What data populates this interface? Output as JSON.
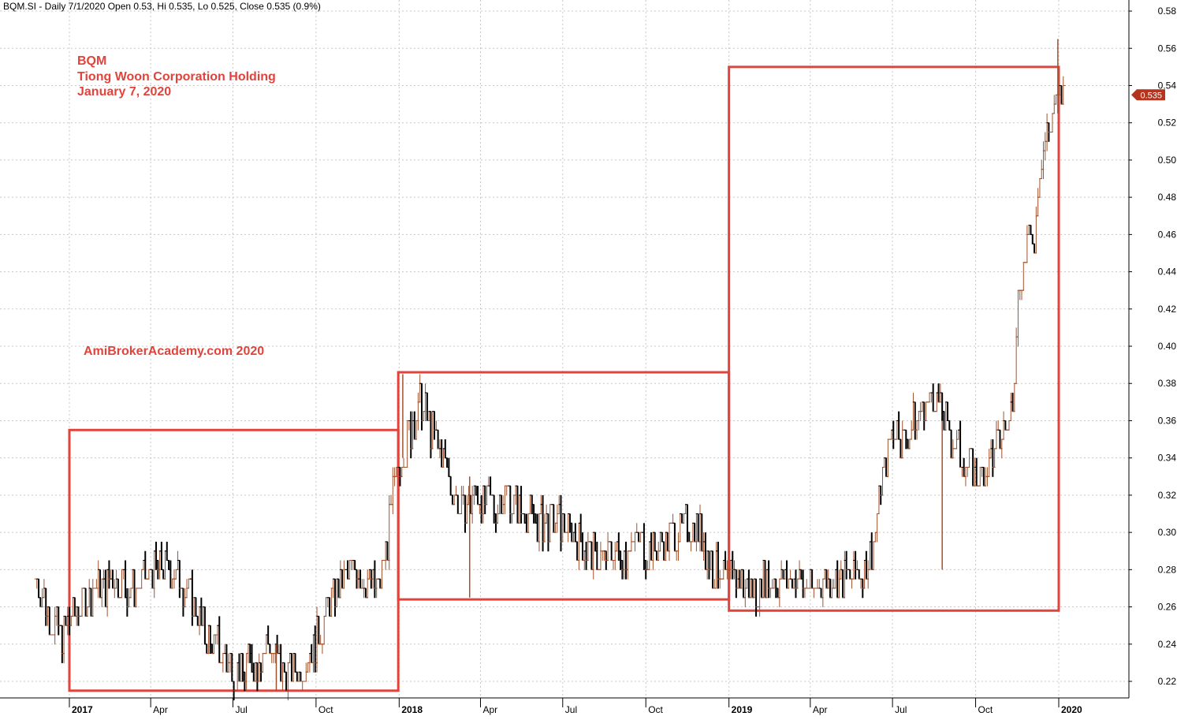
{
  "header": {
    "text": "BQM.SI - Daily 7/1/2020 Open 0.53, Hi 0.535, Lo 0.525, Close 0.535 (0.9%)"
  },
  "annotation": {
    "symbol": "BQM",
    "company": "Tiong Woon Corporation Holding",
    "date": "January 7, 2020",
    "watermark": "AmiBrokerAcademy.com  2020"
  },
  "colors": {
    "box": "#e0443c",
    "up_bar": "#a0522d",
    "down_bar": "#000000",
    "grid": "#c8c8c8",
    "price_tag": "#b5341e"
  },
  "chart_data": {
    "type": "ohlc",
    "title": "",
    "xlabel": "",
    "ylabel": "",
    "ylim": [
      0.21,
      0.585
    ],
    "y_ticks": [
      "0.22",
      "0.24",
      "0.26",
      "0.28",
      "0.30",
      "0.32",
      "0.34",
      "0.36",
      "0.38",
      "0.40",
      "0.42",
      "0.44",
      "0.46",
      "0.48",
      "0.50",
      "0.52",
      "0.54",
      "0.56",
      "0.58"
    ],
    "x_ticks": [
      {
        "label": "2017",
        "date": "2017-01-01",
        "bold": true
      },
      {
        "label": "Apr",
        "date": "2017-04-01",
        "bold": false
      },
      {
        "label": "Jul",
        "date": "2017-07-01",
        "bold": false
      },
      {
        "label": "Oct",
        "date": "2017-10-01",
        "bold": false
      },
      {
        "label": "2018",
        "date": "2018-01-01",
        "bold": true
      },
      {
        "label": "Apr",
        "date": "2018-04-01",
        "bold": false
      },
      {
        "label": "Jul",
        "date": "2018-07-01",
        "bold": false
      },
      {
        "label": "Oct",
        "date": "2018-10-01",
        "bold": false
      },
      {
        "label": "2019",
        "date": "2019-01-01",
        "bold": true
      },
      {
        "label": "Apr",
        "date": "2019-04-01",
        "bold": false
      },
      {
        "label": "Jul",
        "date": "2019-07-01",
        "bold": false
      },
      {
        "label": "Oct",
        "date": "2019-10-01",
        "bold": false
      },
      {
        "label": "2020",
        "date": "2020-01-01",
        "bold": true
      }
    ],
    "last_price_label": "0.535",
    "last_price": 0.535,
    "boxes": [
      {
        "start": "2017-01-01",
        "end": "2017-12-31",
        "low": 0.215,
        "high": 0.355
      },
      {
        "start": "2017-12-31",
        "end": "2019-01-01",
        "low": 0.264,
        "high": 0.386
      },
      {
        "start": "2019-01-01",
        "end": "2020-01-01",
        "low": 0.258,
        "high": 0.55
      }
    ],
    "series": [
      {
        "type": "close_path",
        "points": [
          [
            "2016-11-26",
            0.275
          ],
          [
            "2016-12-10",
            0.255
          ],
          [
            "2016-12-24",
            0.245
          ],
          [
            "2017-01-10",
            0.26
          ],
          [
            "2017-02-01",
            0.27
          ],
          [
            "2017-02-20",
            0.275
          ],
          [
            "2017-03-15",
            0.27
          ],
          [
            "2017-04-05",
            0.28
          ],
          [
            "2017-04-25",
            0.28
          ],
          [
            "2017-05-15",
            0.265
          ],
          [
            "2017-06-01",
            0.245
          ],
          [
            "2017-06-20",
            0.235
          ],
          [
            "2017-07-05",
            0.225
          ],
          [
            "2017-07-25",
            0.23
          ],
          [
            "2017-08-10",
            0.24
          ],
          [
            "2017-08-25",
            0.225
          ],
          [
            "2017-09-10",
            0.225
          ],
          [
            "2017-09-25",
            0.235
          ],
          [
            "2017-10-10",
            0.255
          ],
          [
            "2017-10-25",
            0.27
          ],
          [
            "2017-11-10",
            0.28
          ],
          [
            "2017-11-25",
            0.275
          ],
          [
            "2017-12-10",
            0.27
          ],
          [
            "2017-12-20",
            0.3
          ],
          [
            "2017-12-28",
            0.33
          ],
          [
            "2018-01-10",
            0.35
          ],
          [
            "2018-01-25",
            0.37
          ],
          [
            "2018-02-10",
            0.35
          ],
          [
            "2018-02-25",
            0.33
          ],
          [
            "2018-03-10",
            0.31
          ],
          [
            "2018-03-25",
            0.32
          ],
          [
            "2018-04-10",
            0.315
          ],
          [
            "2018-05-01",
            0.32
          ],
          [
            "2018-05-20",
            0.31
          ],
          [
            "2018-06-10",
            0.305
          ],
          [
            "2018-07-01",
            0.305
          ],
          [
            "2018-07-20",
            0.295
          ],
          [
            "2018-08-10",
            0.285
          ],
          [
            "2018-08-30",
            0.29
          ],
          [
            "2018-09-20",
            0.295
          ],
          [
            "2018-10-10",
            0.29
          ],
          [
            "2018-11-01",
            0.3
          ],
          [
            "2018-11-25",
            0.305
          ],
          [
            "2018-12-15",
            0.28
          ],
          [
            "2019-01-05",
            0.275
          ],
          [
            "2019-01-25",
            0.27
          ],
          [
            "2019-02-15",
            0.275
          ],
          [
            "2019-03-10",
            0.275
          ],
          [
            "2019-04-01",
            0.27
          ],
          [
            "2019-04-20",
            0.275
          ],
          [
            "2019-05-10",
            0.275
          ],
          [
            "2019-05-30",
            0.28
          ],
          [
            "2019-06-10",
            0.295
          ],
          [
            "2019-06-20",
            0.33
          ],
          [
            "2019-07-01",
            0.355
          ],
          [
            "2019-07-15",
            0.35
          ],
          [
            "2019-08-01",
            0.365
          ],
          [
            "2019-08-15",
            0.375
          ],
          [
            "2019-09-01",
            0.355
          ],
          [
            "2019-09-15",
            0.34
          ],
          [
            "2019-10-01",
            0.33
          ],
          [
            "2019-10-15",
            0.335
          ],
          [
            "2019-10-30",
            0.35
          ],
          [
            "2019-11-10",
            0.365
          ],
          [
            "2019-11-18",
            0.435
          ],
          [
            "2019-11-28",
            0.455
          ],
          [
            "2019-12-05",
            0.46
          ],
          [
            "2019-12-12",
            0.5
          ],
          [
            "2019-12-20",
            0.515
          ],
          [
            "2019-12-28",
            0.53
          ],
          [
            "2020-01-07",
            0.535
          ]
        ]
      },
      {
        "type": "spikes",
        "points": [
          {
            "date": "2018-03-20",
            "low": 0.265,
            "high": 0.33
          },
          {
            "date": "2019-08-25",
            "low": 0.28,
            "high": 0.36
          },
          {
            "date": "2019-12-31",
            "low": 0.525,
            "high": 0.565
          },
          {
            "date": "2018-01-05",
            "low": 0.34,
            "high": 0.385
          },
          {
            "date": "2017-08-18",
            "low": 0.215,
            "high": 0.24
          }
        ]
      }
    ]
  }
}
